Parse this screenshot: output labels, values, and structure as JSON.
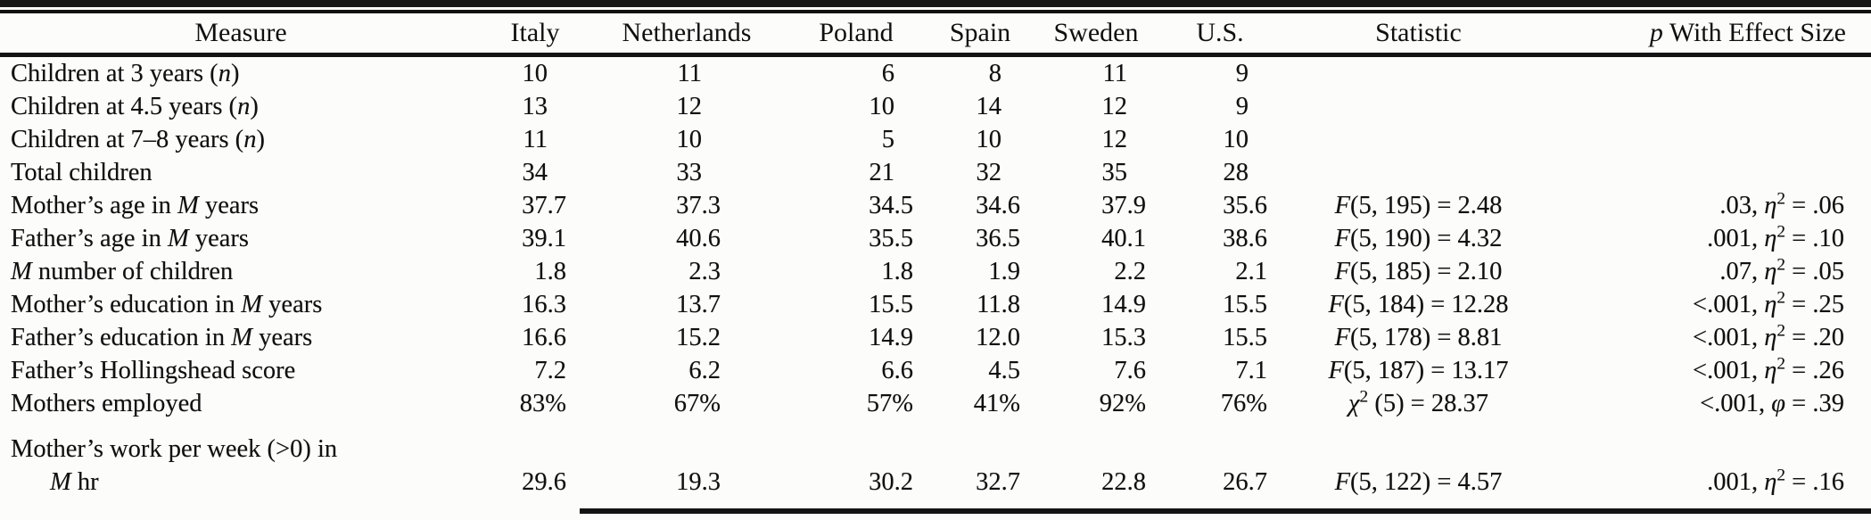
{
  "table": {
    "columns": [
      {
        "key": "measure",
        "label": "Measure"
      },
      {
        "key": "italy",
        "label": "Italy"
      },
      {
        "key": "netherlands",
        "label": "Netherlands"
      },
      {
        "key": "poland",
        "label": "Poland"
      },
      {
        "key": "spain",
        "label": "Spain"
      },
      {
        "key": "sweden",
        "label": "Sweden"
      },
      {
        "key": "us",
        "label": "U.S."
      },
      {
        "key": "statistic",
        "label": "Statistic"
      },
      {
        "key": "p",
        "label": "<i>p</i> With Effect Size"
      }
    ],
    "rows": [
      {
        "measure": "Children at 3 years (<i>n</i>)",
        "values": [
          "10",
          "11",
          "6",
          "8",
          "11",
          "9"
        ],
        "statistic": "",
        "p": ""
      },
      {
        "measure": "Children at 4.5 years (<i>n</i>)",
        "values": [
          "13",
          "12",
          "10",
          "14",
          "12",
          "9"
        ],
        "statistic": "",
        "p": ""
      },
      {
        "measure": "Children at 7–8 years (<i>n</i>)",
        "values": [
          "11",
          "10",
          "5",
          "10",
          "12",
          "10"
        ],
        "statistic": "",
        "p": ""
      },
      {
        "measure": "Total children",
        "values": [
          "34",
          "33",
          "21",
          "32",
          "35",
          "28"
        ],
        "statistic": "",
        "p": ""
      },
      {
        "measure": "Mother’s age in <i>M</i> years",
        "values": [
          "37.7",
          "37.3",
          "34.5",
          "34.6",
          "37.9",
          "35.6"
        ],
        "statistic": "<i>F</i>(5, 195) = 2.48",
        "p": ".03, <i>η</i><sup>2</sup> = .06"
      },
      {
        "measure": "Father’s age in <i>M</i> years",
        "values": [
          "39.1",
          "40.6",
          "35.5",
          "36.5",
          "40.1",
          "38.6"
        ],
        "statistic": "<i>F</i>(5, 190) = 4.32",
        "p": ".001, <i>η</i><sup>2</sup> = .10"
      },
      {
        "measure": "<i>M</i> number of children",
        "values": [
          "1.8",
          "2.3",
          "1.8",
          "1.9",
          "2.2",
          "2.1"
        ],
        "statistic": "<i>F</i>(5, 185) = 2.10",
        "p": ".07, <i>η</i><sup>2</sup> = .05"
      },
      {
        "measure": "Mother’s education in <i>M</i> years",
        "values": [
          "16.3",
          "13.7",
          "15.5",
          "11.8",
          "14.9",
          "15.5"
        ],
        "statistic": "<i>F</i>(5, 184) = 12.28",
        "p": "&lt;.001, <i>η</i><sup>2</sup> = .25"
      },
      {
        "measure": "Father’s education in <i>M</i> years",
        "values": [
          "16.6",
          "15.2",
          "14.9",
          "12.0",
          "15.3",
          "15.5"
        ],
        "statistic": "<i>F</i>(5, 178) = 8.81",
        "p": "&lt;.001, <i>η</i><sup>2</sup> = .20"
      },
      {
        "measure": "Father’s Hollingshead score",
        "values": [
          "7.2",
          "6.2",
          "6.6",
          "4.5",
          "7.6",
          "7.1"
        ],
        "statistic": "<i>F</i>(5, 187) = 13.17",
        "p": "&lt;.001, <i>η</i><sup>2</sup> = .26"
      },
      {
        "measure": "Mothers employed",
        "values": [
          "83%",
          "67%",
          "57%",
          "41%",
          "92%",
          "76%"
        ],
        "statistic": "<i>χ</i><sup>2</sup> (5) = 28.37",
        "p": "&lt;.001, <i>φ</i> = .39"
      },
      {
        "measure": "Mother’s work per week (&gt;0) in\n<i>M</i> hr",
        "values": [
          "29.6",
          "19.3",
          "30.2",
          "32.7",
          "22.8",
          "26.7"
        ],
        "statistic": "<i>F</i>(5, 122) = 4.57",
        "p": ".001, <i>η</i><sup>2</sup> = .16",
        "tall": true
      }
    ]
  }
}
